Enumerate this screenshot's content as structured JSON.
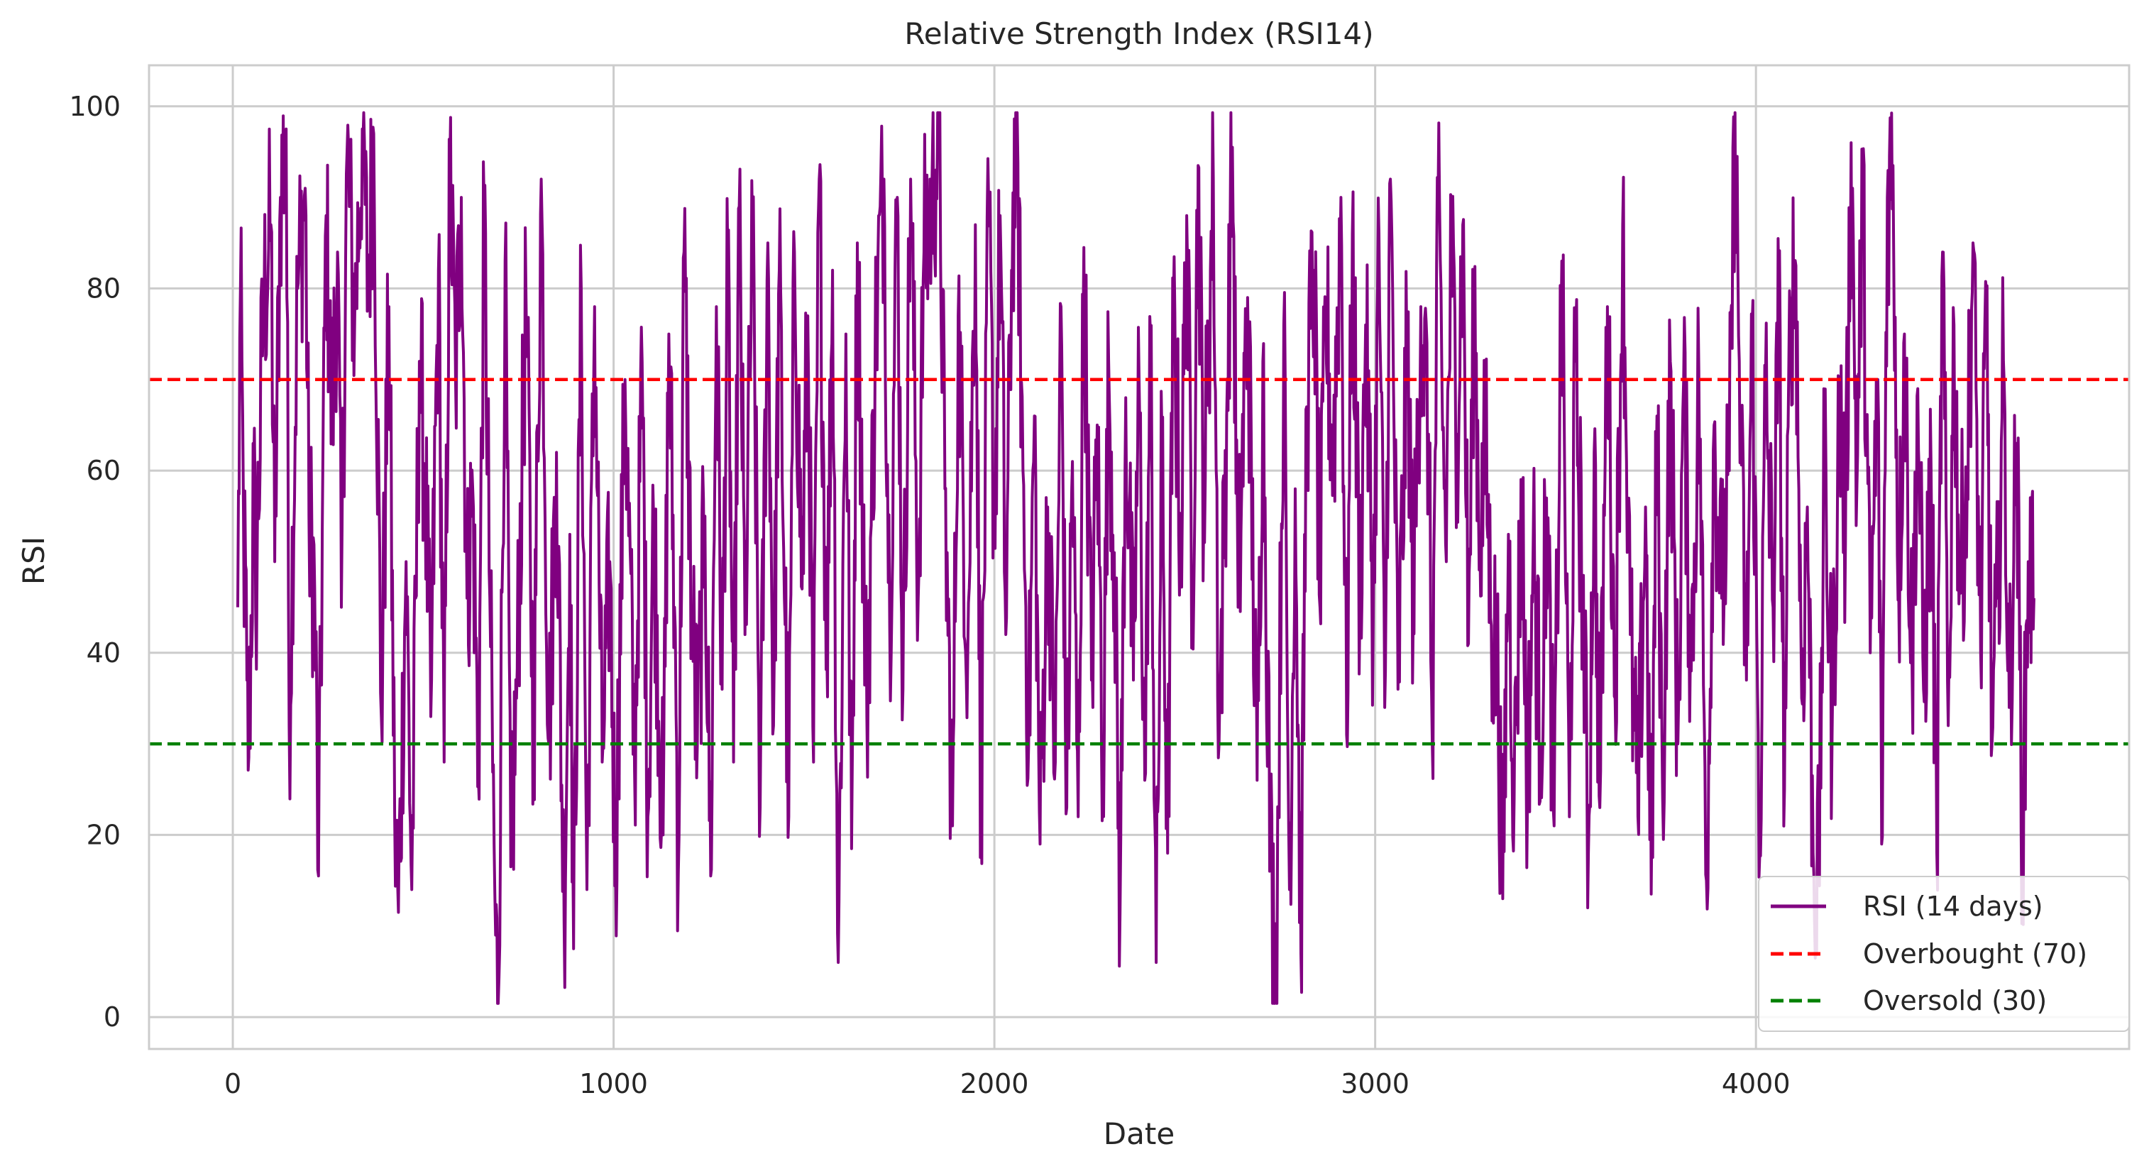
{
  "chart_data": {
    "type": "line",
    "title": "Relative Strength Index (RSI14)",
    "xlabel": "Date",
    "ylabel": "RSI",
    "xlim": [
      -220,
      4980
    ],
    "ylim": [
      -3.5,
      104.5
    ],
    "xticks": [
      0,
      1000,
      2000,
      3000,
      4000
    ],
    "yticks": [
      0,
      20,
      40,
      60,
      80,
      100
    ],
    "grid": true,
    "legend_position": "lower-right",
    "series": [
      {
        "name": "RSI (14 days)",
        "color": "#800080",
        "style": "solid",
        "x_start": 13,
        "x_step": 1,
        "y_min": 1.5,
        "y_max": 99.3,
        "anchors": [
          [
            13,
            45
          ],
          [
            20,
            80
          ],
          [
            28,
            55
          ],
          [
            37,
            37
          ],
          [
            42,
            28.5
          ],
          [
            55,
            60
          ],
          [
            60,
            45
          ],
          [
            80,
            78
          ],
          [
            100,
            87
          ],
          [
            110,
            50
          ],
          [
            125,
            90
          ],
          [
            140,
            97.5
          ],
          [
            148,
            32
          ],
          [
            170,
            80
          ],
          [
            190,
            91
          ],
          [
            200,
            55
          ],
          [
            215,
            47
          ],
          [
            225,
            15.5
          ],
          [
            245,
            88
          ],
          [
            260,
            65
          ],
          [
            275,
            84
          ],
          [
            285,
            45
          ],
          [
            300,
            95
          ],
          [
            320,
            76
          ],
          [
            340,
            97.5
          ],
          [
            355,
            80
          ],
          [
            370,
            97
          ],
          [
            390,
            33
          ],
          [
            410,
            78
          ],
          [
            425,
            22
          ],
          [
            435,
            11.5
          ],
          [
            455,
            50
          ],
          [
            470,
            14
          ],
          [
            490,
            72
          ],
          [
            505,
            60
          ],
          [
            520,
            33
          ],
          [
            540,
            82
          ],
          [
            555,
            28
          ],
          [
            570,
            94
          ],
          [
            585,
            70
          ],
          [
            600,
            90
          ],
          [
            615,
            46
          ],
          [
            630,
            58
          ],
          [
            645,
            26
          ],
          [
            660,
            89
          ],
          [
            675,
            46
          ],
          [
            690,
            9
          ],
          [
            697,
            1.5
          ],
          [
            715,
            83
          ],
          [
            730,
            16.5
          ],
          [
            745,
            35
          ],
          [
            770,
            79
          ],
          [
            790,
            30
          ],
          [
            810,
            92
          ],
          [
            830,
            30
          ],
          [
            850,
            62
          ],
          [
            870,
            10.5
          ],
          [
            885,
            53
          ],
          [
            895,
            7.5
          ],
          [
            915,
            80
          ],
          [
            930,
            14
          ],
          [
            950,
            78
          ],
          [
            970,
            28
          ],
          [
            990,
            50
          ],
          [
            1005,
            16
          ],
          [
            1030,
            70
          ],
          [
            1055,
            27
          ],
          [
            1075,
            72
          ],
          [
            1090,
            22
          ],
          [
            1105,
            55
          ],
          [
            1130,
            20
          ],
          [
            1145,
            75
          ],
          [
            1160,
            45
          ],
          [
            1170,
            16
          ],
          [
            1185,
            84
          ],
          [
            1205,
            45
          ],
          [
            1220,
            30
          ],
          [
            1240,
            55
          ],
          [
            1255,
            15.5
          ],
          [
            1270,
            78
          ],
          [
            1285,
            36
          ],
          [
            1300,
            83
          ],
          [
            1315,
            28
          ],
          [
            1330,
            89
          ],
          [
            1345,
            42
          ],
          [
            1365,
            86
          ],
          [
            1385,
            23
          ],
          [
            1405,
            85
          ],
          [
            1420,
            32
          ],
          [
            1435,
            82
          ],
          [
            1460,
            22
          ],
          [
            1475,
            84
          ],
          [
            1495,
            47
          ],
          [
            1510,
            77
          ],
          [
            1525,
            28
          ],
          [
            1540,
            92
          ],
          [
            1560,
            40
          ],
          [
            1575,
            82
          ],
          [
            1590,
            6
          ],
          [
            1610,
            75
          ],
          [
            1625,
            18.5
          ],
          [
            1640,
            85
          ],
          [
            1665,
            33
          ],
          [
            1690,
            78
          ],
          [
            1710,
            92
          ],
          [
            1725,
            43
          ],
          [
            1745,
            90
          ],
          [
            1760,
            36
          ],
          [
            1780,
            92
          ],
          [
            1800,
            46
          ],
          [
            1815,
            84
          ],
          [
            1835,
            89
          ],
          [
            1855,
            97.5
          ],
          [
            1870,
            58
          ],
          [
            1890,
            21
          ],
          [
            1905,
            77
          ],
          [
            1930,
            40
          ],
          [
            1950,
            87
          ],
          [
            1965,
            22
          ],
          [
            1985,
            89
          ],
          [
            2000,
            53
          ],
          [
            2015,
            88
          ],
          [
            2030,
            42
          ],
          [
            2045,
            82
          ],
          [
            2058,
            99.2
          ],
          [
            2075,
            60
          ],
          [
            2090,
            30
          ],
          [
            2105,
            66
          ],
          [
            2120,
            19
          ],
          [
            2140,
            56
          ],
          [
            2160,
            28
          ],
          [
            2175,
            78
          ],
          [
            2190,
            23
          ],
          [
            2205,
            61
          ],
          [
            2220,
            22
          ],
          [
            2235,
            84.5
          ],
          [
            2255,
            37
          ],
          [
            2270,
            65
          ],
          [
            2285,
            27
          ],
          [
            2300,
            72
          ],
          [
            2315,
            51
          ],
          [
            2330,
            11.5
          ],
          [
            2345,
            68
          ],
          [
            2365,
            37
          ],
          [
            2380,
            70
          ],
          [
            2395,
            26
          ],
          [
            2410,
            75
          ],
          [
            2425,
            6
          ],
          [
            2440,
            64
          ],
          [
            2455,
            18
          ],
          [
            2470,
            78
          ],
          [
            2490,
            52
          ],
          [
            2505,
            88
          ],
          [
            2520,
            46
          ],
          [
            2535,
            93.5
          ],
          [
            2550,
            56
          ],
          [
            2575,
            92
          ],
          [
            2590,
            30
          ],
          [
            2610,
            66
          ],
          [
            2625,
            95.5
          ],
          [
            2640,
            45
          ],
          [
            2665,
            79
          ],
          [
            2690,
            26
          ],
          [
            2705,
            72
          ],
          [
            2725,
            18
          ],
          [
            2740,
            5
          ],
          [
            2760,
            76
          ],
          [
            2775,
            14
          ],
          [
            2790,
            58
          ],
          [
            2805,
            7
          ],
          [
            2820,
            67
          ],
          [
            2840,
            82
          ],
          [
            2855,
            45
          ],
          [
            2870,
            78
          ],
          [
            2890,
            61
          ],
          [
            2910,
            90
          ],
          [
            2925,
            31
          ],
          [
            2940,
            86
          ],
          [
            2960,
            45
          ],
          [
            2975,
            76
          ],
          [
            2995,
            44
          ],
          [
            3010,
            86
          ],
          [
            3025,
            34
          ],
          [
            3040,
            92
          ],
          [
            3060,
            36
          ],
          [
            3085,
            75
          ],
          [
            3100,
            44
          ],
          [
            3120,
            78
          ],
          [
            3140,
            64
          ],
          [
            3150,
            30
          ],
          [
            3165,
            89
          ],
          [
            3185,
            52
          ],
          [
            3200,
            85
          ],
          [
            3215,
            64
          ],
          [
            3230,
            87
          ],
          [
            3245,
            41
          ],
          [
            3260,
            79
          ],
          [
            3275,
            52
          ],
          [
            3290,
            63
          ],
          [
            3305,
            43
          ],
          [
            3320,
            40
          ],
          [
            3335,
            13
          ],
          [
            3350,
            53
          ],
          [
            3365,
            24
          ],
          [
            3385,
            58
          ],
          [
            3400,
            24
          ],
          [
            3415,
            52
          ],
          [
            3435,
            30
          ],
          [
            3450,
            57
          ],
          [
            3470,
            21
          ],
          [
            3490,
            83
          ],
          [
            3510,
            22
          ],
          [
            3525,
            72
          ],
          [
            3545,
            47
          ],
          [
            3560,
            18
          ],
          [
            3575,
            62
          ],
          [
            3590,
            23
          ],
          [
            3610,
            78
          ],
          [
            3630,
            35
          ],
          [
            3650,
            87
          ],
          [
            3670,
            42
          ],
          [
            3690,
            22
          ],
          [
            3710,
            56
          ],
          [
            3725,
            13.5
          ],
          [
            3740,
            66
          ],
          [
            3755,
            24
          ],
          [
            3775,
            72
          ],
          [
            3795,
            30
          ],
          [
            3810,
            70
          ],
          [
            3830,
            38
          ],
          [
            3850,
            71
          ],
          [
            3870,
            15
          ],
          [
            3890,
            65
          ],
          [
            3910,
            46
          ],
          [
            3930,
            60
          ],
          [
            3945,
            99.3
          ],
          [
            3960,
            62
          ],
          [
            3975,
            37
          ],
          [
            3990,
            76
          ],
          [
            4010,
            18
          ],
          [
            4025,
            70
          ],
          [
            4045,
            45
          ],
          [
            4060,
            80
          ],
          [
            4075,
            25
          ],
          [
            4090,
            78
          ],
          [
            4105,
            82.5
          ],
          [
            4120,
            35
          ],
          [
            4135,
            56
          ],
          [
            4150,
            18
          ],
          [
            4165,
            14.5
          ],
          [
            4180,
            62
          ],
          [
            4200,
            31
          ],
          [
            4220,
            69
          ],
          [
            4235,
            52
          ],
          [
            4250,
            96
          ],
          [
            4265,
            58
          ],
          [
            4280,
            92
          ],
          [
            4300,
            40
          ],
          [
            4320,
            70
          ],
          [
            4330,
            19
          ],
          [
            4345,
            90
          ],
          [
            4360,
            93.5
          ],
          [
            4375,
            46
          ],
          [
            4390,
            75
          ],
          [
            4410,
            38
          ],
          [
            4425,
            69
          ],
          [
            4440,
            36
          ],
          [
            4460,
            60
          ],
          [
            4475,
            18
          ],
          [
            4490,
            84
          ],
          [
            4505,
            32
          ],
          [
            4520,
            76
          ],
          [
            4535,
            48
          ],
          [
            4555,
            60
          ],
          [
            4570,
            85
          ],
          [
            4590,
            40
          ],
          [
            4605,
            80
          ],
          [
            4620,
            30
          ],
          [
            4635,
            46
          ],
          [
            4650,
            72
          ],
          [
            4665,
            34
          ],
          [
            4685,
            63
          ],
          [
            4700,
            17.5
          ],
          [
            4715,
            50
          ],
          [
            4730,
            46
          ]
        ]
      },
      {
        "name": "Overbought (70)",
        "color": "#ff0000",
        "style": "dashed",
        "y": 70
      },
      {
        "name": "Oversold (30)",
        "color": "#008000",
        "style": "dashed",
        "y": 30
      }
    ]
  }
}
